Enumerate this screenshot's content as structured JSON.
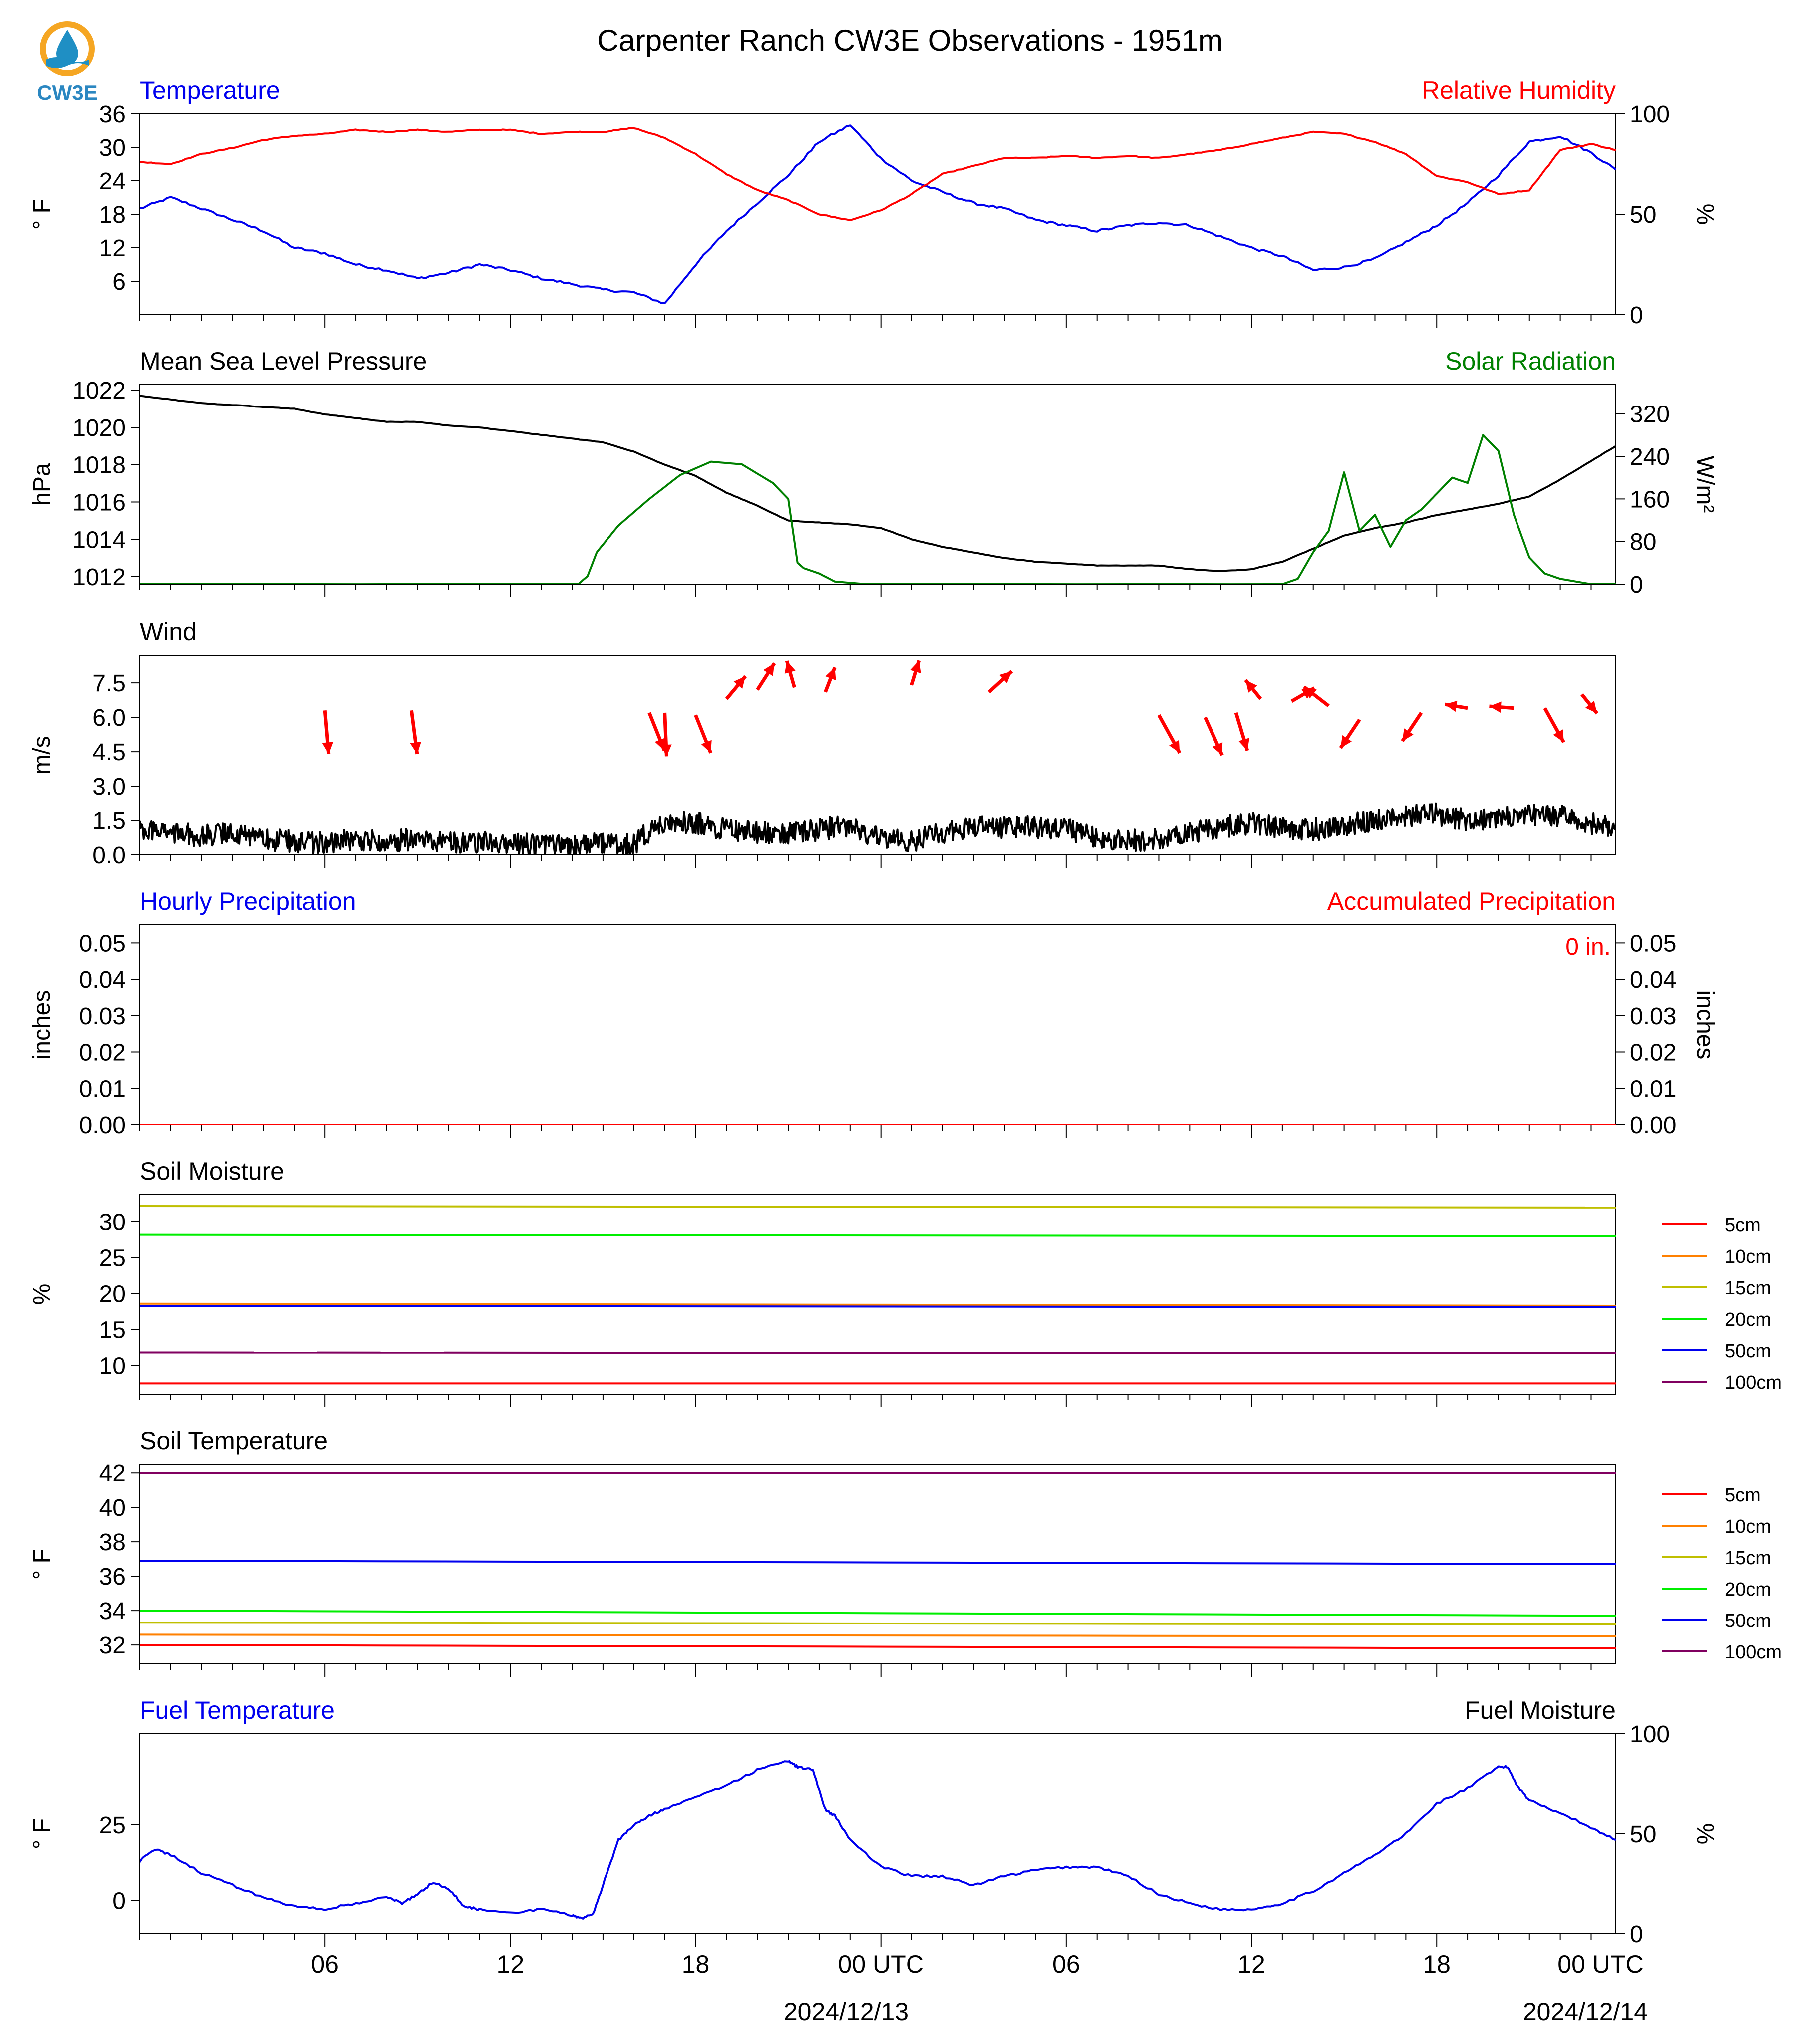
{
  "title": "Carpenter Ranch CW3E Observations - 1951m",
  "logo": {
    "text": "CW3E",
    "colors": {
      "ring": "#f5a623",
      "drop": "#1f8fc4",
      "wave": "#1f8fc4",
      "text": "#2b87c1"
    }
  },
  "colors": {
    "blue": "#0000ee",
    "red": "#ff0000",
    "green": "#008000",
    "black": "#000000"
  },
  "time_axis": {
    "tick_labels": [
      "06",
      "12",
      "18",
      "00 UTC",
      "06",
      "12",
      "18",
      "00 UTC"
    ],
    "date_labels": [
      "2024/12/13",
      "2024/12/14"
    ]
  },
  "chart_data": [
    {
      "type": "line",
      "title_left": "Temperature",
      "title_right": "Relative Humidity",
      "ylabel_left": "° F",
      "ylabel_right": "%",
      "yticks_left": [
        "6",
        "12",
        "18",
        "24",
        "30",
        "36"
      ],
      "yticks_right": [
        "0",
        "50",
        "100"
      ],
      "ylim_left": [
        0,
        36
      ],
      "ylim_right": [
        0,
        100
      ],
      "series": [
        {
          "name": "Temperature",
          "axis": "left",
          "color": "#0000ee",
          "x": [
            0,
            1,
            2,
            3,
            4,
            5,
            6,
            7,
            8,
            9,
            10,
            11,
            12,
            13,
            14,
            15,
            16,
            17,
            18,
            19,
            20,
            21,
            22,
            23,
            24,
            25,
            26,
            27,
            28,
            29,
            30,
            31,
            32,
            33,
            34,
            35,
            36,
            37,
            38,
            39,
            40,
            41,
            42,
            43,
            44,
            45,
            46,
            47,
            47.8
          ],
          "y": [
            19,
            21,
            19,
            17,
            15,
            12,
            11,
            9,
            8,
            6.5,
            7.5,
            9,
            8,
            6.5,
            5.5,
            4.5,
            4,
            2,
            9,
            15,
            20,
            25,
            31,
            34,
            28,
            24,
            22,
            20,
            19,
            17,
            16,
            15,
            16,
            16.5,
            16,
            14,
            12,
            10.5,
            8,
            8.5,
            10,
            13,
            16,
            20,
            25,
            31,
            32,
            29,
            26
          ]
        },
        {
          "name": "Relative Humidity",
          "axis": "right",
          "color": "#ff0000",
          "x": [
            0,
            1,
            2,
            3,
            4,
            5,
            6,
            7,
            8,
            9,
            10,
            11,
            12,
            13,
            14,
            15,
            16,
            17,
            18,
            19,
            20,
            21,
            22,
            23,
            24,
            25,
            26,
            27,
            28,
            29,
            30,
            31,
            32,
            33,
            34,
            35,
            36,
            37,
            38,
            39,
            40,
            41,
            42,
            43,
            44,
            45,
            46,
            47,
            47.8
          ],
          "y": [
            76,
            75,
            80,
            83,
            87,
            89,
            90,
            92,
            91,
            92,
            91,
            92,
            92,
            90,
            91,
            91,
            93,
            88,
            80,
            70,
            62,
            57,
            50,
            47,
            52,
            60,
            70,
            74,
            78,
            78,
            79,
            78,
            79,
            78,
            80,
            82,
            85,
            88,
            91,
            90,
            86,
            80,
            69,
            66,
            60,
            62,
            82,
            85,
            82
          ]
        }
      ]
    },
    {
      "type": "line",
      "title_left": "Mean Sea Level Pressure",
      "title_right": "Solar Radiation",
      "ylabel_left": "hPa",
      "ylabel_right": "W/m²",
      "yticks_left": [
        "1012",
        "1014",
        "1016",
        "1018",
        "1020",
        "1022"
      ],
      "yticks_right": [
        "0",
        "80",
        "160",
        "240",
        "320"
      ],
      "ylim_left": [
        1011.6,
        1022.3
      ],
      "ylim_right": [
        0,
        375
      ],
      "series": [
        {
          "name": "Mean Sea Level Pressure",
          "axis": "left",
          "color": "#000000",
          "x": [
            0,
            1,
            2,
            3,
            4,
            5,
            6,
            7,
            8,
            9,
            10,
            11,
            12,
            13,
            14,
            15,
            16,
            17,
            18,
            19,
            20,
            21,
            22,
            23,
            24,
            25,
            26,
            27,
            28,
            29,
            30,
            31,
            32,
            33,
            34,
            35,
            36,
            37,
            38,
            39,
            40,
            41,
            42,
            43,
            44,
            45,
            46,
            47,
            47.8
          ],
          "y": [
            1021.7,
            1021.5,
            1021.3,
            1021.2,
            1021.1,
            1021,
            1020.7,
            1020.5,
            1020.3,
            1020.3,
            1020.1,
            1020,
            1019.8,
            1019.6,
            1019.4,
            1019.2,
            1018.7,
            1018,
            1017.4,
            1016.5,
            1015.8,
            1015,
            1014.9,
            1014.8,
            1014.6,
            1014,
            1013.6,
            1013.3,
            1013,
            1012.8,
            1012.7,
            1012.6,
            1012.6,
            1012.6,
            1012.4,
            1012.3,
            1012.4,
            1012.8,
            1013.5,
            1014.2,
            1014.6,
            1014.9,
            1015.3,
            1015.6,
            1015.9,
            1016.3,
            1017.2,
            1018.2,
            1019
          ],
          "note": ""
        },
        {
          "name": "Solar Radiation",
          "axis": "right",
          "color": "#008000",
          "x": [
            0,
            14.2,
            14.5,
            14.8,
            15.5,
            16.5,
            17.5,
            18.5,
            19.5,
            20.5,
            21,
            21.3,
            21.5,
            22,
            22.5,
            23.5,
            37,
            37.5,
            38,
            38.5,
            39,
            39.5,
            40,
            40.5,
            41,
            41.5,
            42,
            42.5,
            43,
            43.5,
            44,
            44.5,
            45,
            45.5,
            46,
            46.5,
            47,
            47.8
          ],
          "y": [
            0,
            0,
            15,
            60,
            110,
            160,
            205,
            230,
            225,
            190,
            160,
            40,
            30,
            20,
            5,
            0,
            0,
            10,
            60,
            100,
            210,
            100,
            130,
            70,
            120,
            140,
            170,
            200,
            190,
            280,
            250,
            130,
            50,
            20,
            10,
            5,
            0,
            0
          ]
        }
      ]
    },
    {
      "type": "line",
      "title_left": "Wind",
      "ylabel_left": "m/s",
      "yticks_left": [
        "0.0",
        "1.5",
        "3.0",
        "4.5",
        "6.0",
        "7.5"
      ],
      "ylim_left": [
        0,
        8.7
      ],
      "series": [
        {
          "name": "Wind Speed",
          "axis": "left",
          "color": "#000000",
          "x": [
            0,
            1,
            2,
            3,
            4,
            5,
            6,
            7,
            8,
            9,
            10,
            11,
            12,
            13,
            14,
            15,
            16,
            17,
            18,
            19,
            20,
            21,
            22,
            23,
            24,
            25,
            26,
            27,
            28,
            29,
            30,
            31,
            32,
            33,
            34,
            35,
            36,
            37,
            38,
            39,
            40,
            41,
            42,
            43,
            44,
            45,
            46,
            47,
            47.8
          ],
          "y": [
            1,
            0.8,
            0.6,
            0.8,
            0.5,
            0.4,
            0.3,
            0.5,
            0.4,
            0.5,
            0.3,
            0.4,
            0.3,
            0.2,
            0.2,
            0.3,
            0.3,
            1.3,
            1.2,
            0.9,
            0.8,
            0.7,
            0.9,
            1.1,
            0.5,
            0.4,
            0.8,
            1,
            1,
            1,
            0.9,
            0.6,
            0.4,
            0.5,
            0.8,
            1,
            1.2,
            1,
            0.9,
            1.1,
            1.3,
            1.5,
            1.6,
            1.3,
            1.4,
            1.5,
            1.5,
            1.2,
            0.9
          ]
        },
        {
          "name": "Wind Direction",
          "axis": "left",
          "color": "#ff0000",
          "x": [
            6,
            8.8,
            16.5,
            17,
            18,
            19,
            20,
            21.2,
            22.2,
            25,
            27.5,
            33,
            34.5,
            35.5,
            36.3,
            37.3,
            38.5,
            39.5,
            41.5,
            43,
            44.5,
            45.5,
            46.7
          ],
          "y": [
            6.3,
            6.3,
            6.2,
            6.2,
            6.1,
            6.8,
            7.2,
            7.3,
            7.1,
            7.4,
            7.1,
            6.1,
            6,
            6.2,
            6.8,
            6.7,
            6.5,
            5.9,
            6.2,
            6.4,
            6.4,
            6.4,
            7
          ],
          "u": [
            0.2,
            0.3,
            0.8,
            0.1,
            0.8,
            1,
            0.9,
            -0.4,
            0.5,
            0.4,
            1.2,
            1.1,
            0.9,
            0.6,
            -0.8,
            1.2,
            -1.3,
            -1,
            -1,
            -1.2,
            -1.3,
            1,
            0.8
          ],
          "v": [
            -2.3,
            -2.3,
            -2,
            -2.3,
            -2,
            1.2,
            1.4,
            1.4,
            1.3,
            1.3,
            1.1,
            -2,
            -2,
            -2,
            1,
            0.7,
            1,
            -1.5,
            -1.5,
            0.2,
            0.1,
            -1.8,
            -1
          ]
        }
      ]
    },
    {
      "type": "line",
      "title_left": "Hourly Precipitation",
      "title_right": "Accumulated Precipitation",
      "ylabel_left": "inches",
      "ylabel_right": "inches",
      "yticks_left": [
        "0.00",
        "0.01",
        "0.02",
        "0.03",
        "0.04",
        "0.05"
      ],
      "yticks_right": [
        "0.00",
        "0.01",
        "0.02",
        "0.03",
        "0.04",
        "0.05"
      ],
      "ylim_left": [
        0,
        0.055
      ],
      "ylim_right": [
        0,
        0.055
      ],
      "annotation": "0 in.",
      "series": [
        {
          "name": "Hourly Precipitation",
          "axis": "left",
          "color": "#0000ee",
          "x": [
            0,
            47.8
          ],
          "y": [
            0,
            0
          ]
        },
        {
          "name": "Accumulated Precipitation",
          "axis": "right",
          "color": "#ff0000",
          "x": [
            0,
            47.8
          ],
          "y": [
            0,
            0
          ]
        }
      ]
    },
    {
      "type": "line",
      "title_left": "Soil Moisture",
      "ylabel_left": "%",
      "yticks_left": [
        "10",
        "15",
        "20",
        "25",
        "30"
      ],
      "ylim_left": [
        6,
        33.8
      ],
      "legend": "right",
      "series": [
        {
          "name": "5cm",
          "color": "#ff0000",
          "x": [
            0,
            47.8
          ],
          "y": [
            7.5,
            7.5
          ]
        },
        {
          "name": "10cm",
          "color": "#ff8000",
          "x": [
            0,
            47.8
          ],
          "y": [
            18.6,
            18.3
          ]
        },
        {
          "name": "15cm",
          "color": "#bfbf00",
          "x": [
            0,
            47.8
          ],
          "y": [
            32.2,
            32
          ]
        },
        {
          "name": "20cm",
          "color": "#00ee00",
          "x": [
            0,
            47.8
          ],
          "y": [
            28.2,
            28
          ]
        },
        {
          "name": "50cm",
          "color": "#0000ee",
          "x": [
            0,
            47.8
          ],
          "y": [
            18.3,
            18.1
          ]
        },
        {
          "name": "100cm",
          "color": "#800060",
          "x": [
            0,
            47.8
          ],
          "y": [
            11.8,
            11.7
          ]
        }
      ]
    },
    {
      "type": "line",
      "title_left": "Soil Temperature",
      "ylabel_left": "° F",
      "yticks_left": [
        "32",
        "34",
        "36",
        "38",
        "40",
        "42"
      ],
      "ylim_left": [
        30.9,
        42.5
      ],
      "legend": "right",
      "series": [
        {
          "name": "5cm",
          "color": "#ff0000",
          "x": [
            0,
            47.8
          ],
          "y": [
            32,
            31.8
          ]
        },
        {
          "name": "10cm",
          "color": "#ff8000",
          "x": [
            0,
            47.8
          ],
          "y": [
            32.6,
            32.5
          ]
        },
        {
          "name": "15cm",
          "color": "#bfbf00",
          "x": [
            0,
            47.8
          ],
          "y": [
            33.3,
            33.2
          ]
        },
        {
          "name": "20cm",
          "color": "#00ee00",
          "x": [
            0,
            47.8
          ],
          "y": [
            34,
            33.7
          ]
        },
        {
          "name": "50cm",
          "color": "#0000ee",
          "x": [
            0,
            47.8
          ],
          "y": [
            36.9,
            36.7
          ]
        },
        {
          "name": "100cm",
          "color": "#800060",
          "x": [
            0,
            47.8
          ],
          "y": [
            42,
            42
          ]
        }
      ]
    },
    {
      "type": "line",
      "title_left": "Fuel Temperature",
      "title_right": "Fuel Moisture",
      "ylabel_left": "° F",
      "ylabel_right": "%",
      "yticks_left": [
        "0",
        "25"
      ],
      "yticks_right": [
        "0",
        "50",
        "100"
      ],
      "ylim_left": [
        -11,
        55
      ],
      "ylim_right": [
        0,
        100
      ],
      "series": [
        {
          "name": "Fuel Temperature",
          "axis": "left",
          "color": "#0000ee",
          "x": [
            0,
            0.5,
            1,
            2,
            3,
            4,
            5,
            6,
            7,
            8,
            8.5,
            9,
            9.5,
            10,
            10.5,
            11,
            12,
            13,
            14,
            14.3,
            14.7,
            15,
            15.5,
            16,
            16.5,
            17,
            18,
            19,
            20,
            21,
            21.3,
            21.8,
            22.2,
            22.5,
            23,
            24,
            25,
            26,
            27,
            28,
            29,
            30,
            31,
            32,
            33,
            34,
            35,
            36,
            37,
            38,
            39,
            40,
            41,
            42,
            43,
            44,
            44.3,
            44.6,
            45,
            46,
            47,
            47.8
          ],
          "y": [
            13,
            17,
            15,
            9,
            5,
            1,
            -2,
            -3,
            -1,
            1,
            -1,
            2,
            6,
            4,
            -2,
            -3,
            -4,
            -3,
            -5,
            -6,
            -4,
            5,
            20,
            25,
            28,
            30,
            34,
            38,
            43,
            46,
            44,
            43,
            30,
            28,
            20,
            11,
            8,
            8,
            5,
            8,
            10,
            11,
            11,
            8,
            2,
            -1,
            -3,
            -3,
            -1,
            3,
            9,
            15,
            22,
            32,
            37,
            44,
            44,
            38,
            33,
            29,
            24,
            20
          ]
        }
      ]
    }
  ]
}
